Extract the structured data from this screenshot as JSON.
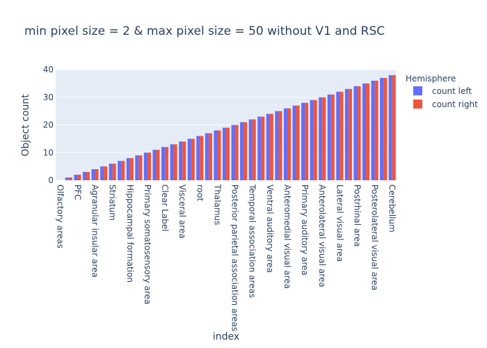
{
  "chart_data": {
    "type": "bar",
    "title": "min pixel size = 2 & max pixel size = 50 without V1 and RSC",
    "xlabel": "index",
    "ylabel": "Object count",
    "ylim": [
      0,
      40
    ],
    "yticks": [
      0,
      10,
      20,
      30,
      40
    ],
    "grid": true,
    "legend_title": "Hemisphere",
    "legend_position": "top-right",
    "categories": [
      "Olfactory areas",
      "",
      "PFC",
      "",
      "Agranular insular area",
      "",
      "Striatum",
      "",
      "Hippocampal formation",
      "",
      "Primary somatosensory area",
      "",
      "Clear Label",
      "",
      "Visceral area",
      "",
      "root",
      "",
      "Thalamus",
      "",
      "Posterior parietal association areas",
      "",
      "Temporal association areas",
      "",
      "Ventral auditory area",
      "",
      "Anteromedial visual area",
      "",
      "Primary auditory area",
      "",
      "Anterolateral visual area",
      "",
      "Lateral visual area",
      "",
      "Postrhinal area",
      "",
      "Posterolateral visual area",
      "",
      "Cerebellum"
    ],
    "series": [
      {
        "name": "count left",
        "color": "#636efa",
        "values": [
          0,
          1,
          2,
          3,
          4,
          5,
          6,
          7,
          8,
          9,
          10,
          11,
          12,
          13,
          14,
          15,
          16,
          17,
          18,
          19,
          20,
          21,
          22,
          23,
          24,
          25,
          26,
          27,
          28,
          29,
          30,
          31,
          32,
          33,
          34,
          35,
          36,
          37,
          38
        ]
      },
      {
        "name": "count right",
        "color": "#ef553b",
        "values": [
          0,
          1,
          2,
          3,
          4,
          5,
          6,
          7,
          8,
          9,
          10,
          11,
          12,
          13,
          14,
          15,
          16,
          17,
          18,
          19,
          20,
          21,
          22,
          23,
          24,
          25,
          26,
          27,
          28,
          29,
          30,
          31,
          32,
          33,
          34,
          35,
          36,
          37,
          38
        ]
      }
    ]
  }
}
